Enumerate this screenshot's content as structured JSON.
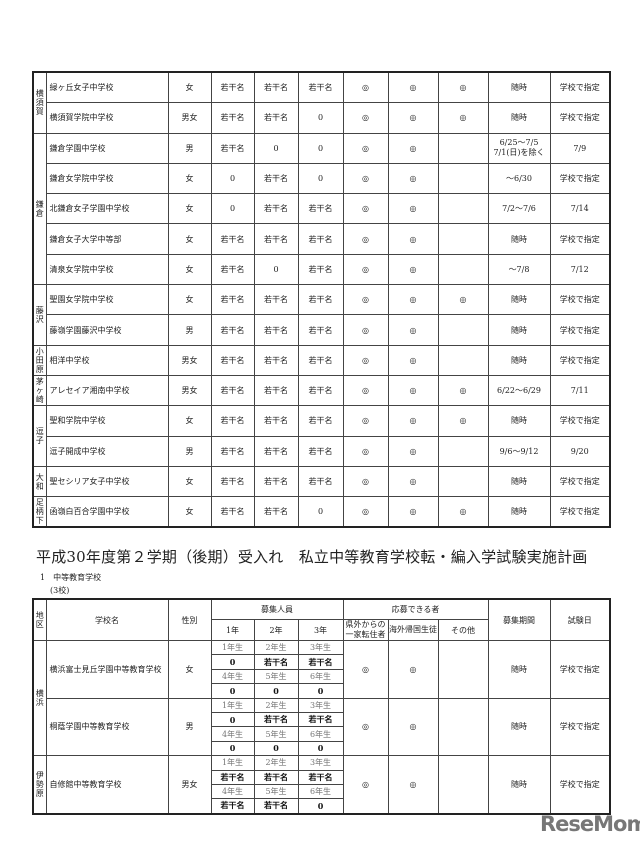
{
  "top_table": {
    "regions": [
      {
        "name": "横須賀",
        "schools": [
          [
            "緑ヶ丘女子中学校",
            "女",
            "若干名",
            "若干名",
            "若干名",
            "◎",
            "◎",
            "◎",
            "随時",
            "学校で指定"
          ],
          [
            "横須賀学院中学校",
            "男女",
            "若干名",
            "若干名",
            "0",
            "◎",
            "◎",
            "◎",
            "随時",
            "学校で指定"
          ]
        ]
      },
      {
        "name": "鎌倉",
        "schools": [
          [
            "鎌倉学園中学校",
            "男",
            "若干名",
            "0",
            "0",
            "◎",
            "◎",
            "",
            "6/25～7/5\n7/1(日)を除く",
            "7/9"
          ],
          [
            "鎌倉女学院中学校",
            "女",
            "0",
            "若干名",
            "0",
            "◎",
            "◎",
            "",
            "～6/30",
            "学校で指定"
          ],
          [
            "北鎌倉女子学園中学校",
            "女",
            "0",
            "若干名",
            "若干名",
            "◎",
            "◎",
            "",
            "7/2～7/6",
            "7/14"
          ],
          [
            "鎌倉女子大学中等部",
            "女",
            "若干名",
            "若干名",
            "若干名",
            "◎",
            "◎",
            "",
            "随時",
            "学校で指定"
          ],
          [
            "清泉女学院中学校",
            "女",
            "若干名",
            "0",
            "若干名",
            "◎",
            "◎",
            "",
            "～7/8",
            "7/12"
          ]
        ]
      },
      {
        "name": "藤沢",
        "schools": [
          [
            "聖園女学院中学校",
            "女",
            "若干名",
            "若干名",
            "若干名",
            "◎",
            "◎",
            "◎",
            "随時",
            "学校で指定"
          ],
          [
            "藤嶺学園藤沢中学校",
            "男",
            "若干名",
            "若干名",
            "若干名",
            "◎",
            "◎",
            "",
            "随時",
            "学校で指定"
          ]
        ]
      },
      {
        "name": "小田原",
        "schools": [
          [
            "相洋中学校",
            "男女",
            "若干名",
            "若干名",
            "若干名",
            "◎",
            "◎",
            "",
            "随時",
            "学校で指定"
          ]
        ]
      },
      {
        "name": "茅ヶ崎",
        "schools": [
          [
            "アレセイア湘南中学校",
            "男女",
            "若干名",
            "若干名",
            "若干名",
            "◎",
            "◎",
            "◎",
            "6/22～6/29",
            "7/11"
          ]
        ]
      },
      {
        "name": "逗子",
        "schools": [
          [
            "聖和学院中学校",
            "女",
            "若干名",
            "若干名",
            "若干名",
            "◎",
            "◎",
            "◎",
            "随時",
            "学校で指定"
          ],
          [
            "逗子開成中学校",
            "男",
            "若干名",
            "若干名",
            "若干名",
            "◎",
            "◎",
            "",
            "9/6～9/12",
            "9/20"
          ]
        ]
      },
      {
        "name": "大和",
        "schools": [
          [
            "聖セシリア女子中学校",
            "女",
            "若干名",
            "若干名",
            "若干名",
            "◎",
            "◎",
            "",
            "随時",
            "学校で指定"
          ]
        ]
      },
      {
        "name": "足柄下",
        "schools": [
          [
            "函嶺白百合学園中学校",
            "女",
            "若干名",
            "若干名",
            "0",
            "◎",
            "◎",
            "◎",
            "随時",
            "学校で指定"
          ]
        ]
      }
    ]
  },
  "section": {
    "title": "平成30年度第２学期（後期）受入れ　私立中等教育学校転・編入学試験実施計画",
    "subtitle": "1　中等教育学校",
    "count": "(3校)"
  },
  "bottom_table": {
    "headers": {
      "region": "地区",
      "school": "学校名",
      "gender": "性別",
      "recruit": "募集人員",
      "years": [
        "1年",
        "2年",
        "3年"
      ],
      "eligible": "応募できる者",
      "eligible_sub": [
        "県外からの一家転住者",
        "海外帰国生徒",
        "その他"
      ],
      "period": "募集期間",
      "exam": "試験日"
    },
    "regions": [
      {
        "name": "横浜",
        "schools": [
          {
            "name": "横浜富士見丘学園中等教育学校",
            "gender": "女",
            "grades": [
              [
                "1年生",
                "2年生",
                "3年生"
              ],
              [
                "0",
                "若干名",
                "若干名"
              ],
              [
                "4年生",
                "5年生",
                "6年生"
              ],
              [
                "0",
                "0",
                "0"
              ]
            ],
            "e1": "◎",
            "e2": "◎",
            "e3": "",
            "period": "随時",
            "exam": "学校で指定"
          },
          {
            "name": "桐蔭学園中等教育学校",
            "gender": "男",
            "grades": [
              [
                "1年生",
                "2年生",
                "3年生"
              ],
              [
                "0",
                "若干名",
                "若干名"
              ],
              [
                "4年生",
                "5年生",
                "6年生"
              ],
              [
                "0",
                "0",
                "0"
              ]
            ],
            "e1": "◎",
            "e2": "◎",
            "e3": "",
            "period": "随時",
            "exam": "学校で指定"
          }
        ]
      },
      {
        "name": "伊勢原",
        "schools": [
          {
            "name": "自修館中等教育学校",
            "gender": "男女",
            "grades": [
              [
                "1年生",
                "2年生",
                "3年生"
              ],
              [
                "若干名",
                "若干名",
                "若干名"
              ],
              [
                "4年生",
                "5年生",
                "6年生"
              ],
              [
                "若干名",
                "若干名",
                "0"
              ]
            ],
            "e1": "◎",
            "e2": "◎",
            "e3": "",
            "period": "随時",
            "exam": "学校で指定"
          }
        ]
      }
    ]
  },
  "watermark": "ReseMom"
}
